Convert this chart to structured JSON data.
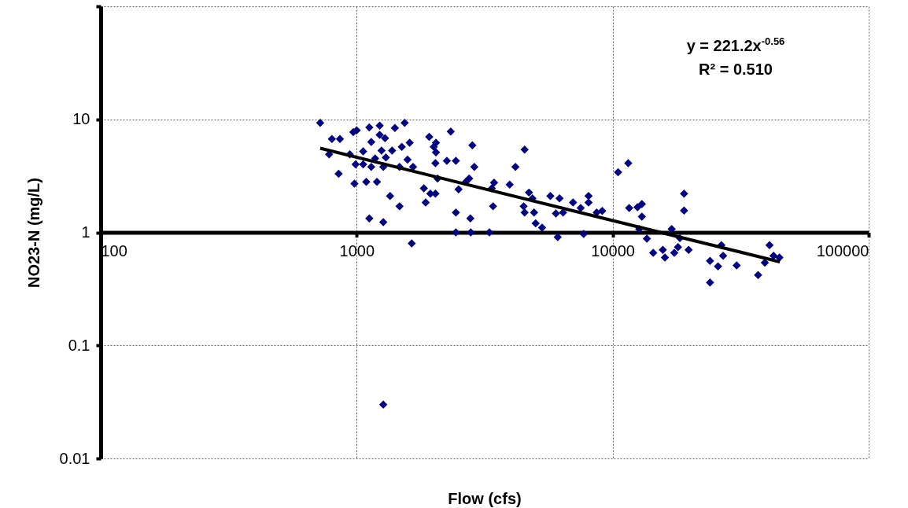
{
  "chart_data": {
    "type": "scatter",
    "xlabel": "Flow (cfs)",
    "ylabel": "NO23-N (mg/L)",
    "log": "xy",
    "grid": true,
    "marker": "diamond",
    "xlim": [
      100,
      100000
    ],
    "xticks": [
      100,
      1000,
      10000,
      100000
    ],
    "ylim": [
      0.01,
      100
    ],
    "yticks": [
      0.01,
      0.1,
      1,
      10,
      {
        "value": 100,
        "label": null
      }
    ],
    "annotations": [
      "y = 221.2x$^{-0.56}$",
      "R² = 0.510"
    ],
    "series": [
      {
        "color": "#000080",
        "x": [
          720,
          780,
          800,
          860,
          850,
          940,
          970,
          1000,
          990,
          980,
          1060,
          1060,
          1090,
          1120,
          1140,
          1140,
          1120,
          1180,
          1200,
          1230,
          1230,
          1250,
          1270,
          1270,
          1270,
          1290,
          1300,
          1375,
          1410,
          1350,
          1470,
          1500,
          1470,
          1540,
          1610,
          1580,
          1640,
          1660,
          1830,
          1860,
          1940,
          1920,
          2000,
          2040,
          2040,
          2030,
          2070,
          2030,
          2330,
          2250,
          2440,
          2440,
          2500,
          2440,
          2670,
          2750,
          2780,
          2790,
          2830,
          2880,
          3300,
          3370,
          3440,
          3410,
          3960,
          4170,
          4530,
          4490,
          4530,
          4710,
          4860,
          4930,
          5000,
          5300,
          5710,
          6000,
          6100,
          6200,
          6400,
          7000,
          7500,
          7700,
          8050,
          8050,
          8660,
          9100,
          10500,
          11500,
          11600,
          12500,
          12700,
          13000,
          13000,
          13600,
          14400,
          15700,
          16000,
          17000,
          17400,
          18000,
          18300,
          19000,
          19000,
          19800,
          24000,
          24000,
          25800,
          26600,
          27000,
          30500,
          37000,
          39300,
          41000,
          42500,
          44800
        ],
        "values": [
          9.3,
          4.9,
          6.7,
          6.7,
          3.3,
          4.9,
          7.7,
          8,
          4.0,
          2.7,
          5.2,
          4.0,
          2.8,
          8.5,
          6.3,
          3.8,
          1.33,
          4.5,
          2.8,
          7.3,
          8.8,
          5.3,
          3.8,
          1.23,
          0.03,
          6.8,
          4.6,
          5.3,
          8.4,
          2.1,
          3.8,
          5.7,
          1.7,
          9.3,
          6.2,
          4.4,
          0.8,
          3.8,
          2.45,
          1.84,
          2.2,
          7.0,
          5.7,
          5.1,
          6.2,
          4.1,
          3.0,
          2.2,
          7.8,
          4.3,
          4.3,
          1.5,
          2.4,
          1.0,
          2.8,
          3.0,
          1.33,
          1.0,
          5.9,
          3.8,
          1.0,
          2.45,
          2.75,
          1.7,
          2.65,
          3.8,
          5.4,
          1.7,
          1.5,
          2.25,
          2.0,
          1.5,
          1.2,
          1.1,
          2.1,
          1.47,
          0.91,
          2.0,
          1.5,
          1.84,
          1.64,
          0.97,
          1.84,
          2.1,
          1.5,
          1.55,
          3.4,
          4.1,
          1.64,
          1.67,
          1.07,
          1.78,
          1.38,
          0.88,
          0.66,
          0.7,
          0.6,
          1.07,
          0.66,
          0.74,
          0.89,
          1.56,
          2.2,
          0.7,
          0.56,
          0.36,
          0.5,
          0.77,
          0.62,
          0.51,
          0.42,
          0.54,
          0.77,
          0.62,
          0.6
        ]
      },
      {
        "type": "line",
        "marker": "none",
        "color": "#000000",
        "x": [
          720,
          45000
        ],
        "values": [
          5.55,
          0.548
        ]
      }
    ]
  }
}
